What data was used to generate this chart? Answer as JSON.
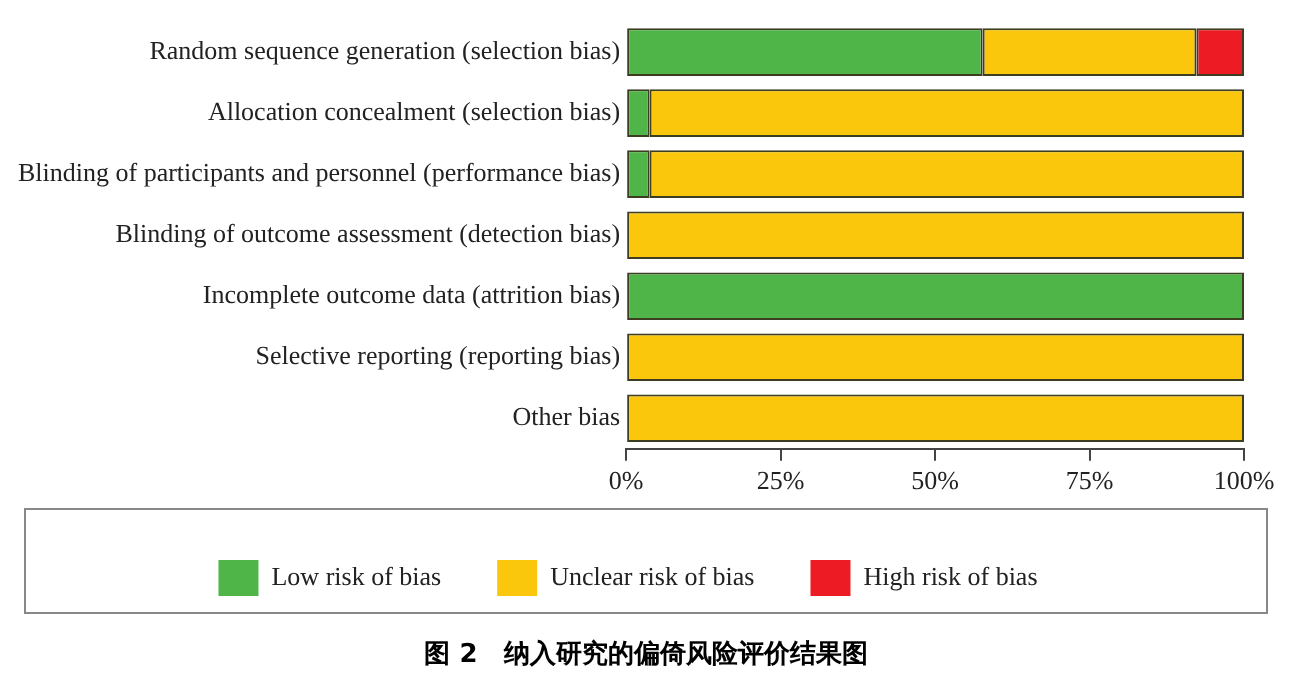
{
  "chart_data": {
    "type": "bar",
    "orientation": "horizontal",
    "stacked": true,
    "title": "图 2　纳入研究的偏倚风险评价结果图",
    "categories": [
      "Random sequence generation (selection bias)",
      "Allocation concealment (selection bias)",
      "Blinding of participants and personnel (performance bias)",
      "Blinding of outcome assessment (detection bias)",
      "Incomplete outcome data (attrition bias)",
      "Selective reporting (reporting bias)",
      "Other bias"
    ],
    "series": [
      {
        "name": "Low risk of bias",
        "color": "#4fb548",
        "values": [
          57.7,
          3.8,
          3.8,
          0,
          100,
          0,
          0
        ]
      },
      {
        "name": "Unclear risk of bias",
        "color": "#fbc70c",
        "values": [
          34.6,
          96.2,
          96.2,
          100,
          0,
          100,
          100
        ]
      },
      {
        "name": "High risk of bias",
        "color": "#ed1c24",
        "values": [
          7.7,
          0,
          0,
          0,
          0,
          0,
          0
        ]
      }
    ],
    "xlim": [
      0,
      100
    ],
    "xticks": [
      {
        "value": 0,
        "label": "0%"
      },
      {
        "value": 25,
        "label": "25%"
      },
      {
        "value": 50,
        "label": "50%"
      },
      {
        "value": 75,
        "label": "75%"
      },
      {
        "value": 100,
        "label": "100%"
      }
    ],
    "grid": false,
    "legend": "bottom"
  }
}
